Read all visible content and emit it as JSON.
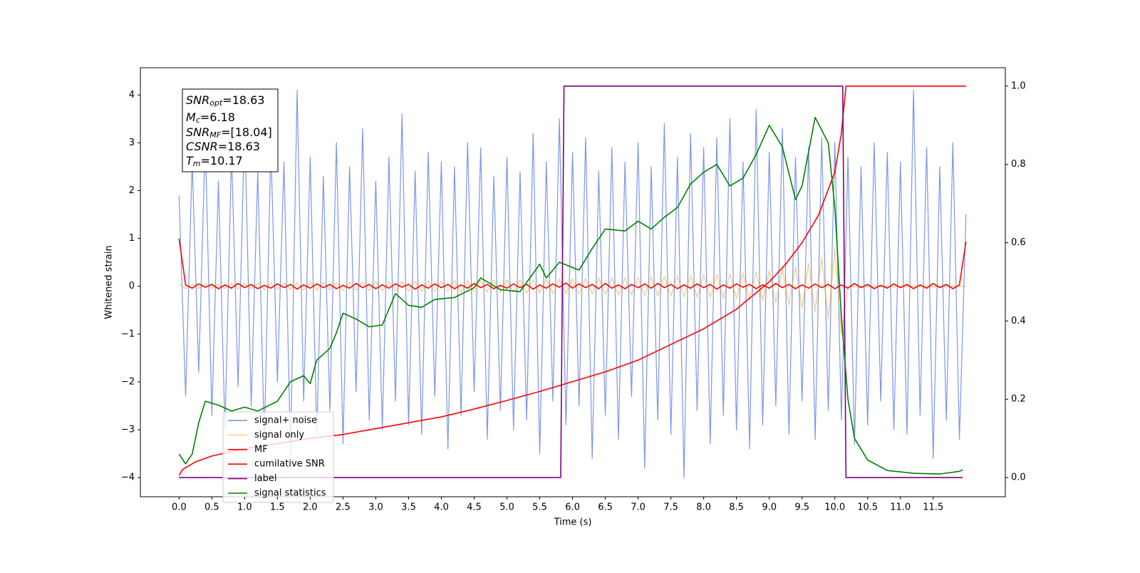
{
  "chart_data": {
    "type": "line",
    "xlabel": "Time (s)",
    "ylabel": "Whitened strain",
    "xlim": [
      -0.59,
      12.6
    ],
    "ylim": [
      -4.4,
      4.57
    ],
    "y2lim": [
      -0.049,
      1.047
    ],
    "xticks": [
      {
        "value": 0,
        "label": "0.0"
      },
      0.5,
      {
        "value": 1,
        "label": "1.0"
      },
      1.5,
      {
        "value": 2,
        "label": "2.0"
      },
      2.5,
      {
        "value": 3,
        "label": "3.0"
      },
      3.5,
      {
        "value": 4,
        "label": "4.0"
      },
      4.5,
      {
        "value": 5,
        "label": "5.0"
      },
      5.5,
      {
        "value": 6,
        "label": "6.0"
      },
      6.5,
      {
        "value": 7,
        "label": "7.0"
      },
      7.5,
      {
        "value": 8,
        "label": "8.0"
      },
      8.5,
      {
        "value": 9,
        "label": "9.0"
      },
      9.5,
      {
        "value": 10,
        "label": "10.0"
      },
      10.5,
      {
        "value": 11,
        "label": "11.0"
      },
      11.5
    ],
    "yticks": [
      {
        "value": -4,
        "label": "−4"
      },
      {
        "value": -3,
        "label": "−3"
      },
      {
        "value": -2,
        "label": "−2"
      },
      {
        "value": -1,
        "label": "−1"
      },
      0,
      1,
      2,
      3,
      4
    ],
    "y2ticks": [
      {
        "value": 0,
        "label": "0.0"
      },
      0.2,
      0.4,
      0.6,
      0.8,
      {
        "value": 1,
        "label": "1.0"
      }
    ],
    "legend": "lower left",
    "annotation": [
      {
        "name": "SNR",
        "sub": "opt",
        "text": "=18.63"
      },
      {
        "name": "M",
        "sub": "c",
        "text": "=6.18"
      },
      {
        "name": "SNR",
        "sub": "MF",
        "text": "=[18.04]"
      },
      {
        "name": "CSNR",
        "sub": null,
        "text": "=18.63"
      },
      {
        "name": "T",
        "sub": "m",
        "text": "=10.17"
      }
    ],
    "x": [
      0,
      0.1,
      0.2,
      0.3,
      0.4,
      0.5,
      0.6,
      0.7,
      0.8,
      0.9,
      1,
      1.1,
      1.2,
      1.3,
      1.4,
      1.5,
      1.6,
      1.7,
      1.8,
      1.9,
      2,
      2.1,
      2.2,
      2.3,
      2.4,
      2.5,
      2.6,
      2.7,
      2.8,
      2.9,
      3,
      3.1,
      3.2,
      3.3,
      3.4,
      3.5,
      3.6,
      3.7,
      3.8,
      3.9,
      4,
      4.1,
      4.2,
      4.3,
      4.4,
      4.5,
      4.6,
      4.7,
      4.8,
      4.9,
      5,
      5.1,
      5.2,
      5.3,
      5.4,
      5.5,
      5.6,
      5.7,
      5.8,
      5.9,
      6,
      6.1,
      6.2,
      6.3,
      6.4,
      6.5,
      6.6,
      6.7,
      6.8,
      6.9,
      7,
      7.1,
      7.2,
      7.3,
      7.4,
      7.5,
      7.6,
      7.7,
      7.8,
      7.9,
      8,
      8.1,
      8.2,
      8.3,
      8.4,
      8.5,
      8.6,
      8.7,
      8.8,
      8.9,
      9,
      9.1,
      9.2,
      9.3,
      9.4,
      9.5,
      9.6,
      9.7,
      9.8,
      9.9,
      10,
      10.1,
      10.2,
      10.3,
      10.4,
      10.5,
      10.6,
      10.7,
      10.8,
      10.9,
      11,
      11.1,
      11.2,
      11.3,
      11.4,
      11.5,
      11.6,
      11.7,
      11.8,
      11.9,
      12
    ],
    "series": [
      {
        "name": "signal+ noise",
        "color": "#6f8be6",
        "values": [
          1.9,
          -2.3,
          2.6,
          -1.8,
          3.1,
          -2.7,
          2.2,
          -3.0,
          2.8,
          -2.1,
          3.4,
          -2.5,
          2.4,
          -3.2,
          2.9,
          -2.0,
          2.6,
          -3.5,
          4.1,
          -2.4,
          2.7,
          -3.1,
          2.3,
          -2.6,
          3.0,
          -3.3,
          2.5,
          -2.2,
          3.3,
          -2.8,
          2.2,
          -3.0,
          2.7,
          -2.4,
          3.6,
          -2.9,
          2.4,
          -3.1,
          2.8,
          -2.3,
          2.6,
          -3.4,
          2.5,
          -2.7,
          3.0,
          -2.2,
          2.9,
          -3.2,
          2.3,
          -2.6,
          2.7,
          -3.0,
          2.4,
          -2.8,
          3.2,
          -3.5,
          2.6,
          -2.4,
          3.5,
          -2.9,
          2.8,
          -2.5,
          3.1,
          -3.6,
          2.4,
          -2.7,
          2.9,
          -3.2,
          2.6,
          -2.3,
          3.0,
          -3.8,
          2.5,
          -2.8,
          3.4,
          -3.1,
          2.7,
          -4.0,
          3.2,
          -2.6,
          2.9,
          -3.3,
          3.1,
          -2.7,
          3.5,
          -3.0,
          2.6,
          -3.4,
          3.7,
          -2.9,
          2.8,
          -2.5,
          3.3,
          -3.1,
          2.7,
          -2.4,
          2.9,
          -3.2,
          3.1,
          -2.6,
          3.0,
          -2.8,
          2.7,
          -3.3,
          2.5,
          -2.9,
          3.0,
          -2.4,
          2.8,
          -3.0,
          2.6,
          -3.1,
          4.1,
          -2.7,
          2.9,
          -3.6,
          2.5,
          -2.8,
          3.0,
          -3.2,
          1.5
        ]
      },
      {
        "name": "signal only",
        "color": "#f0b040",
        "values": [
          0.05,
          -0.05,
          0.05,
          -0.05,
          0.05,
          -0.05,
          0.05,
          -0.05,
          0.06,
          -0.06,
          0.06,
          -0.06,
          0.07,
          -0.07,
          0.07,
          -0.07,
          0.07,
          -0.07,
          0.08,
          -0.08,
          0.08,
          -0.08,
          0.08,
          -0.08,
          0.09,
          -0.09,
          0.09,
          -0.09,
          0.09,
          -0.09,
          0.1,
          -0.1,
          0.1,
          -0.1,
          0.1,
          -0.1,
          0.11,
          -0.11,
          0.11,
          -0.11,
          0.11,
          -0.11,
          0.12,
          -0.12,
          0.12,
          -0.12,
          0.12,
          -0.12,
          0.13,
          -0.13,
          0.13,
          -0.13,
          0.14,
          -0.14,
          0.14,
          -0.14,
          0.15,
          -0.15,
          0.15,
          -0.15,
          0.16,
          -0.16,
          0.16,
          -0.16,
          0.17,
          -0.17,
          0.18,
          -0.18,
          0.18,
          -0.18,
          0.19,
          -0.19,
          0.2,
          -0.2,
          0.21,
          -0.21,
          0.22,
          -0.22,
          0.23,
          -0.23,
          0.24,
          -0.24,
          0.25,
          -0.25,
          0.26,
          -0.26,
          0.28,
          -0.28,
          0.3,
          -0.3,
          0.32,
          -0.34,
          0.36,
          -0.38,
          0.41,
          -0.44,
          0.48,
          -0.53,
          0.6,
          -0.68,
          0.8,
          -1.0,
          0,
          0,
          0,
          0,
          0,
          0,
          0,
          0,
          0,
          0,
          0,
          0,
          0,
          0,
          0,
          0,
          0,
          0,
          0
        ]
      },
      {
        "name": "MF",
        "color": "#ff0000",
        "values": [
          1.0,
          0.03,
          -0.04,
          0.05,
          -0.02,
          0.04,
          -0.05,
          0.03,
          -0.04,
          0.06,
          -0.03,
          0.04,
          -0.05,
          0.02,
          -0.04,
          0.05,
          -0.03,
          0.04,
          -0.06,
          0.03,
          -0.04,
          0.05,
          -0.03,
          0.04,
          -0.05,
          0.02,
          -0.04,
          0.06,
          -0.03,
          0.04,
          -0.05,
          0.03,
          -0.04,
          0.05,
          -0.02,
          0.04,
          -0.06,
          0.03,
          -0.04,
          0.05,
          -0.03,
          0.04,
          -0.05,
          0.03,
          -0.04,
          0.06,
          -0.03,
          0.04,
          -0.05,
          0.02,
          -0.04,
          0.05,
          -0.03,
          0.04,
          -0.06,
          0.03,
          -0.04,
          0.05,
          -0.02,
          0.07,
          -0.04,
          0.05,
          -0.03,
          0.04,
          -0.05,
          0.06,
          -0.04,
          0.03,
          -0.05,
          0.04,
          -0.03,
          0.05,
          -0.04,
          0.06,
          -0.03,
          0.04,
          -0.05,
          0.03,
          -0.04,
          0.05,
          -0.03,
          0.04,
          -0.06,
          0.03,
          -0.04,
          0.05,
          -0.02,
          0.04,
          -0.05,
          0.03,
          -0.04,
          0.06,
          -0.03,
          0.04,
          -0.05,
          0.03,
          -0.04,
          0.05,
          -0.03,
          0.04,
          -0.05,
          0.03,
          -0.04,
          0.06,
          -0.03,
          0.04,
          -0.05,
          0.02,
          -0.04,
          0.05,
          -0.03,
          0.04,
          -0.05,
          0.03,
          -0.04,
          0.06,
          -0.03,
          0.04,
          -0.05,
          0.03,
          0.93
        ]
      },
      {
        "name": "cumilative SNR",
        "color": "#ff0000",
        "axis": "y2",
        "x": [
          0,
          0.05,
          0.25,
          0.5,
          1,
          1.5,
          2,
          2.5,
          3,
          3.5,
          4,
          4.5,
          5,
          5.5,
          6,
          6.5,
          7,
          7.5,
          8,
          8.5,
          9,
          9.25,
          9.5,
          9.75,
          10,
          10.1,
          10.17,
          12
        ],
        "values": [
          0.005,
          0.02,
          0.04,
          0.055,
          0.074,
          0.087,
          0.1,
          0.11,
          0.125,
          0.14,
          0.155,
          0.175,
          0.197,
          0.22,
          0.245,
          0.27,
          0.3,
          0.34,
          0.38,
          0.43,
          0.5,
          0.545,
          0.6,
          0.67,
          0.78,
          0.88,
          1.0,
          1.0
        ]
      },
      {
        "name": "label",
        "color": "#800080",
        "axis": "y2",
        "x": [
          0,
          5.82,
          5.87,
          10.12,
          10.17,
          11.95
        ],
        "values": [
          0,
          0,
          1,
          1,
          0,
          0
        ]
      },
      {
        "name": "signal statistics",
        "color": "#008000",
        "axis": "y2",
        "x": [
          0,
          0.1,
          0.2,
          0.3,
          0.4,
          0.6,
          0.8,
          1.0,
          1.2,
          1.5,
          1.7,
          1.9,
          2.0,
          2.1,
          2.3,
          2.4,
          2.5,
          2.7,
          2.9,
          3.1,
          3.3,
          3.5,
          3.7,
          3.9,
          4.2,
          4.5,
          4.6,
          4.9,
          5.2,
          5.5,
          5.6,
          5.8,
          6.1,
          6.3,
          6.5,
          6.8,
          7.0,
          7.2,
          7.4,
          7.6,
          7.8,
          8.0,
          8.2,
          8.4,
          8.6,
          8.8,
          9.0,
          9.2,
          9.4,
          9.5,
          9.7,
          9.9,
          10.0,
          10.1,
          10.2,
          10.3,
          10.5,
          10.8,
          11.2,
          11.6,
          11.9,
          11.95
        ],
        "values": [
          0.06,
          0.035,
          0.06,
          0.14,
          0.195,
          0.185,
          0.17,
          0.18,
          0.17,
          0.195,
          0.245,
          0.26,
          0.24,
          0.3,
          0.33,
          0.37,
          0.42,
          0.405,
          0.385,
          0.39,
          0.47,
          0.44,
          0.435,
          0.455,
          0.46,
          0.485,
          0.51,
          0.48,
          0.475,
          0.545,
          0.51,
          0.55,
          0.53,
          0.585,
          0.635,
          0.63,
          0.655,
          0.635,
          0.665,
          0.69,
          0.75,
          0.78,
          0.8,
          0.745,
          0.765,
          0.825,
          0.9,
          0.845,
          0.71,
          0.745,
          0.92,
          0.855,
          0.69,
          0.41,
          0.2,
          0.1,
          0.045,
          0.018,
          0.011,
          0.009,
          0.016,
          0.02
        ]
      }
    ]
  }
}
